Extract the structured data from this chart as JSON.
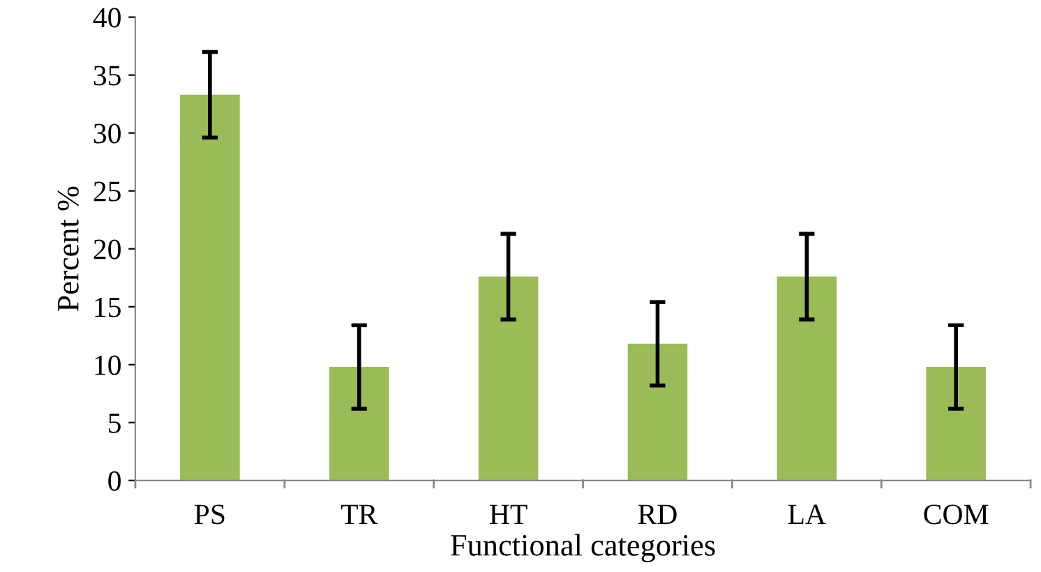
{
  "chart_data": {
    "type": "bar",
    "xlabel": "Functional categories",
    "ylabel": "Percent %",
    "categories": [
      "PS",
      "TR",
      "HT",
      "RD",
      "LA",
      "COM"
    ],
    "values": [
      33.3,
      9.8,
      17.6,
      11.8,
      17.6,
      9.8
    ],
    "errors": [
      3.7,
      3.6,
      3.7,
      3.6,
      3.7,
      3.6
    ],
    "color": "#9bbb59",
    "ylim": [
      0,
      40
    ],
    "yticks": [
      0,
      5,
      10,
      15,
      20,
      25,
      30,
      35,
      40
    ],
    "grid": false,
    "legend": false
  }
}
